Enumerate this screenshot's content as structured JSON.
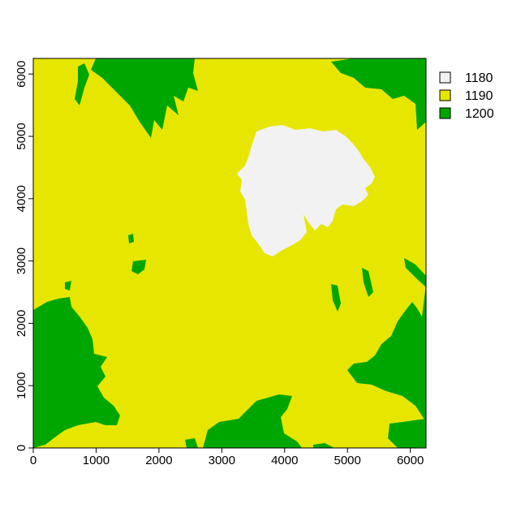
{
  "map": {
    "x_ticks": [
      "0",
      "1000",
      "2000",
      "3000",
      "4000",
      "5000",
      "6000"
    ],
    "y_ticks": [
      "0",
      "1000",
      "2000",
      "3000",
      "4000",
      "5000",
      "6000"
    ],
    "x_range": [
      0,
      6250
    ],
    "y_range": [
      0,
      6250
    ],
    "colors": {
      "low": "#f2f2f2",
      "mid": "#e6e600",
      "high": "#00a600"
    }
  },
  "legend": {
    "items": [
      {
        "label": "1180",
        "color": "#f2f2f2"
      },
      {
        "label": "1190",
        "color": "#e6e600"
      },
      {
        "label": "1200",
        "color": "#00a600"
      }
    ]
  }
}
